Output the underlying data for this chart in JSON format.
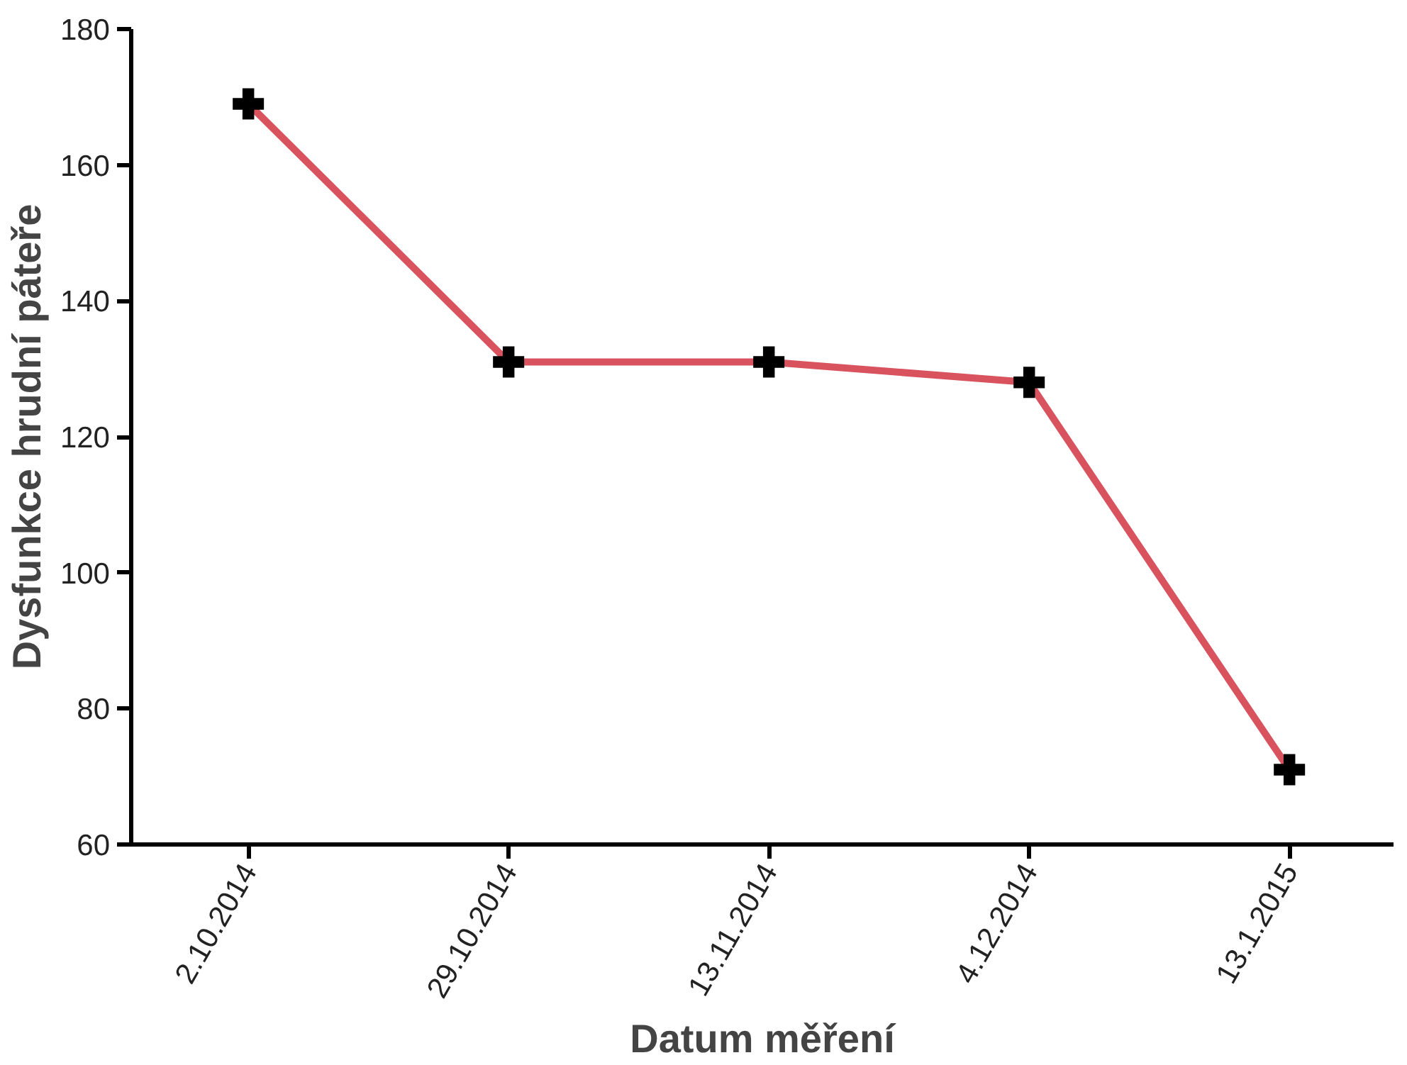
{
  "chart_data": {
    "type": "line",
    "xlabel": "Datum měření",
    "ylabel": "Dysfunkce hrudní páteře",
    "categories": [
      "2.10.2014",
      "29.10.2014",
      "13.11.2014",
      "4.12.2014",
      "13.1.2015"
    ],
    "series": [
      {
        "color": "#d9535f",
        "marker": "none",
        "values": [
          169,
          131,
          131,
          128,
          71
        ]
      },
      {
        "type": "scatter",
        "color": "#000000",
        "values": [
          169,
          131,
          131,
          128,
          71
        ]
      }
    ],
    "ylim": [
      60,
      180
    ],
    "yticks": [
      60,
      80,
      100,
      120,
      140,
      160,
      180
    ],
    "marker": "cross",
    "line_style": "solid"
  }
}
